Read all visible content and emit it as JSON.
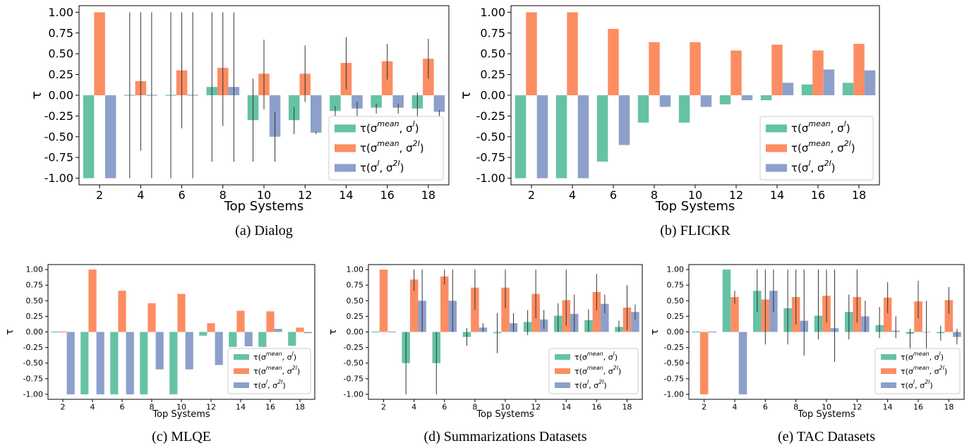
{
  "legend_labels": [
    "τ(σ^mean, σ^l)",
    "τ(σ^mean, σ^2l)",
    "τ(σ^l, σ^2l)"
  ],
  "colors": [
    "#66c2a5",
    "#fc8d62",
    "#8da0cb"
  ],
  "chart_data": [
    {
      "type": "bar",
      "caption": "(a) Dialog",
      "xlabel": "Top Systems",
      "ylabel": "τ",
      "categories": [
        "2",
        "4",
        "6",
        "8",
        "10",
        "12",
        "14",
        "16",
        "18"
      ],
      "ylim": [
        -1.08,
        1.08
      ],
      "yticks": [
        "-1.00",
        "-0.75",
        "-0.50",
        "-0.25",
        "0.00",
        "0.25",
        "0.50",
        "0.75",
        "1.00"
      ],
      "legend_position": "lower right",
      "grid": false,
      "series": [
        {
          "name": "τ(σ^mean, σ^l)",
          "values": [
            -1.0,
            0.0,
            0.0,
            0.1,
            -0.3,
            -0.3,
            -0.19,
            -0.15,
            -0.16
          ],
          "error_low": [
            null,
            -1.0,
            -1.0,
            -0.8,
            -0.8,
            -0.47,
            -0.25,
            -0.22,
            -0.3
          ],
          "error_high": [
            null,
            1.0,
            1.0,
            1.0,
            0.2,
            -0.14,
            -0.13,
            -0.1,
            0.03
          ]
        },
        {
          "name": "τ(σ^mean, σ^2l)",
          "values": [
            1.0,
            0.17,
            0.3,
            0.33,
            0.26,
            0.26,
            0.39,
            0.41,
            0.44
          ],
          "error_low": [
            null,
            -0.67,
            -0.4,
            -0.37,
            -0.17,
            -0.08,
            0.07,
            0.19,
            0.2
          ],
          "error_high": [
            null,
            1.0,
            1.0,
            1.0,
            0.67,
            0.6,
            0.7,
            0.62,
            0.68
          ]
        },
        {
          "name": "τ(σ^l, σ^2l)",
          "values": [
            -1.0,
            0.0,
            0.0,
            0.1,
            -0.5,
            -0.45,
            -0.16,
            -0.15,
            -0.2
          ],
          "error_low": [
            null,
            -1.0,
            -1.0,
            -0.8,
            -0.8,
            -0.47,
            -0.25,
            -0.22,
            -0.25
          ],
          "error_high": [
            null,
            1.0,
            1.0,
            1.0,
            -0.2,
            -0.44,
            -0.08,
            -0.1,
            -0.18
          ]
        }
      ]
    },
    {
      "type": "bar",
      "caption": "(b) FLICKR",
      "xlabel": "Top Systems",
      "ylabel": "τ",
      "categories": [
        "2",
        "4",
        "6",
        "8",
        "10",
        "12",
        "14",
        "16",
        "18"
      ],
      "ylim": [
        -1.08,
        1.08
      ],
      "yticks": [
        "-1.00",
        "-0.75",
        "-0.50",
        "-0.25",
        "0.00",
        "0.25",
        "0.50",
        "0.75",
        "1.00"
      ],
      "legend_position": "lower right",
      "grid": false,
      "series": [
        {
          "name": "τ(σ^mean, σ^l)",
          "values": [
            -1.0,
            -1.0,
            -0.8,
            -0.33,
            -0.33,
            -0.11,
            -0.06,
            0.13,
            0.15
          ]
        },
        {
          "name": "τ(σ^mean, σ^2l)",
          "values": [
            1.0,
            1.0,
            0.8,
            0.64,
            0.64,
            0.54,
            0.61,
            0.54,
            0.62
          ]
        },
        {
          "name": "τ(σ^l, σ^2l)",
          "values": [
            -1.0,
            -1.0,
            -0.6,
            -0.14,
            -0.14,
            -0.06,
            0.15,
            0.31,
            0.3
          ]
        }
      ]
    },
    {
      "type": "bar",
      "caption": "(c) MLQE",
      "xlabel": "Top Systems",
      "ylabel": "τ",
      "categories": [
        "2",
        "4",
        "6",
        "8",
        "10",
        "12",
        "14",
        "16",
        "18"
      ],
      "ylim": [
        -1.08,
        1.08
      ],
      "yticks": [
        "-1.00",
        "-0.75",
        "-0.50",
        "-0.25",
        "0.00",
        "0.25",
        "0.50",
        "0.75",
        "1.00"
      ],
      "legend_position": "lower right",
      "grid": false,
      "series": [
        {
          "name": "τ(σ^mean, σ^l)",
          "values": [
            0.0,
            -1.0,
            -1.0,
            -1.0,
            -1.0,
            -0.06,
            -0.24,
            -0.24,
            -0.22
          ]
        },
        {
          "name": "τ(σ^mean, σ^2l)",
          "values": [
            0.0,
            1.0,
            0.66,
            0.46,
            0.61,
            0.14,
            0.34,
            0.33,
            0.07
          ]
        },
        {
          "name": "τ(σ^l, σ^2l)",
          "values": [
            -1.0,
            -1.0,
            -1.0,
            -0.6,
            -0.6,
            -0.53,
            -0.23,
            0.05,
            -0.02
          ]
        }
      ]
    },
    {
      "type": "bar",
      "caption": "(d) Summarizations Datasets",
      "xlabel": "Top Systems",
      "ylabel": "τ",
      "categories": [
        "2",
        "4",
        "6",
        "8",
        "10",
        "12",
        "14",
        "16",
        "18"
      ],
      "ylim": [
        -1.08,
        1.08
      ],
      "yticks": [
        "-1.00",
        "-0.75",
        "-0.50",
        "-0.25",
        "0.00",
        "0.25",
        "0.50",
        "0.75",
        "1.00"
      ],
      "legend_position": "lower right",
      "grid": false,
      "series": [
        {
          "name": "τ(σ^mean, σ^l)",
          "values": [
            0.0,
            -0.5,
            -0.5,
            -0.08,
            -0.02,
            0.16,
            0.26,
            0.19,
            0.08
          ],
          "error_low": [
            null,
            -1.0,
            -1.0,
            -0.22,
            -0.34,
            -0.05,
            0.0,
            0.0,
            0.0
          ],
          "error_high": [
            null,
            0.0,
            0.0,
            0.06,
            0.3,
            0.35,
            0.46,
            0.36,
            0.18
          ]
        },
        {
          "name": "τ(σ^mean, σ^2l)",
          "values": [
            1.0,
            0.84,
            0.89,
            0.71,
            0.71,
            0.61,
            0.51,
            0.64,
            0.39
          ],
          "error_low": [
            null,
            0.66,
            0.76,
            0.35,
            0.38,
            0.22,
            0.1,
            0.35,
            0.03
          ],
          "error_high": [
            null,
            1.0,
            1.0,
            1.0,
            1.0,
            1.0,
            1.0,
            0.93,
            0.75
          ]
        },
        {
          "name": "τ(σ^l, σ^2l)",
          "values": [
            0.0,
            0.5,
            0.5,
            0.07,
            0.14,
            0.2,
            0.29,
            0.45,
            0.32
          ],
          "error_low": [
            null,
            0.0,
            0.0,
            0.0,
            0.0,
            0.05,
            0.0,
            0.3,
            0.2
          ],
          "error_high": [
            null,
            1.0,
            1.0,
            0.14,
            0.3,
            0.35,
            0.6,
            0.6,
            0.44
          ]
        }
      ]
    },
    {
      "type": "bar",
      "caption": "(e) TAC Datasets",
      "xlabel": "Top Systems",
      "ylabel": "τ",
      "categories": [
        "2",
        "4",
        "6",
        "8",
        "10",
        "12",
        "14",
        "16",
        "18"
      ],
      "ylim": [
        -1.08,
        1.08
      ],
      "yticks": [
        "-1.00",
        "-0.75",
        "-0.50",
        "-0.25",
        "0.00",
        "0.25",
        "0.50",
        "0.75",
        "1.00"
      ],
      "legend_position": "lower right",
      "grid": false,
      "series": [
        {
          "name": "τ(σ^mean, σ^l)",
          "values": [
            0.0,
            1.0,
            0.66,
            0.38,
            0.26,
            0.32,
            0.11,
            -0.03,
            -0.02
          ],
          "error_low": [
            null,
            null,
            0.32,
            -0.2,
            -0.12,
            -0.12,
            -0.1,
            -0.3,
            -0.14
          ],
          "error_high": [
            null,
            null,
            1.0,
            1.0,
            1.0,
            0.6,
            0.4,
            0.05,
            0.1
          ]
        },
        {
          "name": "τ(σ^mean, σ^2l)",
          "values": [
            -1.0,
            0.56,
            0.52,
            0.56,
            0.58,
            0.56,
            0.55,
            0.49,
            0.51
          ],
          "error_low": [
            null,
            0.45,
            -0.2,
            0.12,
            0.15,
            0.15,
            0.3,
            0.22,
            0.29
          ],
          "error_high": [
            null,
            0.66,
            1.0,
            1.0,
            1.0,
            1.0,
            0.8,
            0.82,
            0.72
          ]
        },
        {
          "name": "τ(σ^l, σ^2l)",
          "values": [
            0.0,
            -1.0,
            0.66,
            0.18,
            0.06,
            0.25,
            0.02,
            -0.01,
            -0.08
          ],
          "error_low": [
            null,
            null,
            0.32,
            -0.38,
            -0.48,
            0.0,
            -0.1,
            -0.52,
            -0.2
          ],
          "error_high": [
            null,
            null,
            1.0,
            1.0,
            1.0,
            0.5,
            0.25,
            0.5,
            0.05
          ]
        }
      ]
    }
  ]
}
